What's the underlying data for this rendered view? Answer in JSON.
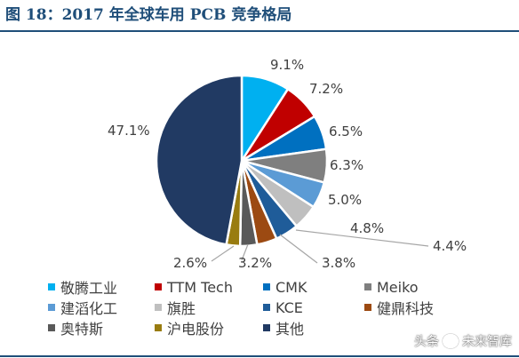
{
  "figure_title": "图 18：2017 年全球车用 PCB 竞争格局",
  "watermark": {
    "left": "头条",
    "right": "未来智库"
  },
  "chart_data": {
    "type": "pie",
    "title": "",
    "slices": [
      {
        "name": "敬腾工业",
        "value": 9.1,
        "label": "9.1%",
        "color": "#00b0f0"
      },
      {
        "name": "TTM Tech",
        "value": 7.2,
        "label": "7.2%",
        "color": "#c00000"
      },
      {
        "name": "CMK",
        "value": 6.5,
        "label": "6.5%",
        "color": "#0070c0"
      },
      {
        "name": "Meiko",
        "value": 6.3,
        "label": "6.3%",
        "color": "#7f7f7f"
      },
      {
        "name": "建滔化工",
        "value": 5.0,
        "label": "5.0%",
        "color": "#5b9bd5"
      },
      {
        "name": "旗胜",
        "value": 4.8,
        "label": "4.8%",
        "color": "#bfbfbf"
      },
      {
        "name": "KCE",
        "value": 4.4,
        "label": "4.4%",
        "color": "#1f5c99"
      },
      {
        "name": "健鼎科技",
        "value": 3.8,
        "label": "3.8%",
        "color": "#9c4a12"
      },
      {
        "name": "奥特斯",
        "value": 3.2,
        "label": "3.2%",
        "color": "#595959"
      },
      {
        "name": "沪电股份",
        "value": 2.6,
        "label": "2.6%",
        "color": "#997c10"
      },
      {
        "name": "其他",
        "value": 47.1,
        "label": "47.1%",
        "color": "#213a63"
      }
    ],
    "legend_position": "bottom"
  }
}
